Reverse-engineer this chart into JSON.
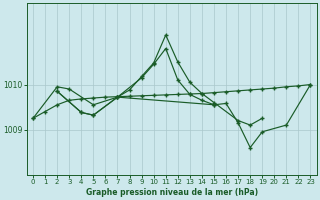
{
  "bg_color": "#cde8ec",
  "grid_color": "#aac8cc",
  "line_color": "#1a5c28",
  "title": "Graphe pression niveau de la mer (hPa)",
  "ylim": [
    1008.0,
    1011.8
  ],
  "xlim": [
    -0.5,
    23.5
  ],
  "yticks": [
    1009,
    1010
  ],
  "xticks": [
    0,
    1,
    2,
    3,
    4,
    5,
    6,
    7,
    8,
    9,
    10,
    11,
    12,
    13,
    14,
    15,
    16,
    17,
    18,
    19,
    20,
    21,
    22,
    23
  ],
  "s1_x": [
    0,
    1,
    2,
    3,
    4,
    5,
    6,
    7,
    8,
    9,
    10,
    11,
    12,
    13,
    14,
    15,
    16,
    17,
    18,
    19,
    20,
    21,
    22,
    23
  ],
  "s1_y": [
    1009.25,
    1009.4,
    1009.55,
    1009.65,
    1009.68,
    1009.7,
    1009.72,
    1009.73,
    1009.74,
    1009.75,
    1009.76,
    1009.77,
    1009.78,
    1009.79,
    1009.8,
    1009.82,
    1009.84,
    1009.86,
    1009.88,
    1009.9,
    1009.92,
    1009.95,
    1009.97,
    1010.0
  ],
  "s2_x": [
    0,
    2,
    3,
    5,
    7,
    9,
    10,
    11,
    12,
    13,
    14,
    15
  ],
  "s2_y": [
    1009.25,
    1009.95,
    1009.9,
    1009.55,
    1009.72,
    1010.15,
    1010.45,
    1010.8,
    1010.1,
    1009.78,
    1009.65,
    1009.55
  ],
  "s3_x": [
    2,
    4,
    5,
    7,
    8,
    9,
    10,
    11,
    12,
    13,
    14,
    15,
    17,
    18,
    19
  ],
  "s3_y": [
    1009.85,
    1009.38,
    1009.32,
    1009.72,
    1009.88,
    1010.18,
    1010.48,
    1011.1,
    1010.5,
    1010.05,
    1009.8,
    1009.6,
    1009.2,
    1009.1,
    1009.25
  ],
  "s4_x": [
    2,
    4,
    5,
    7,
    15,
    16,
    17,
    18,
    19,
    21,
    23
  ],
  "s4_y": [
    1009.85,
    1009.38,
    1009.32,
    1009.72,
    1009.55,
    1009.58,
    1009.15,
    1008.6,
    1008.95,
    1009.1,
    1010.0
  ]
}
